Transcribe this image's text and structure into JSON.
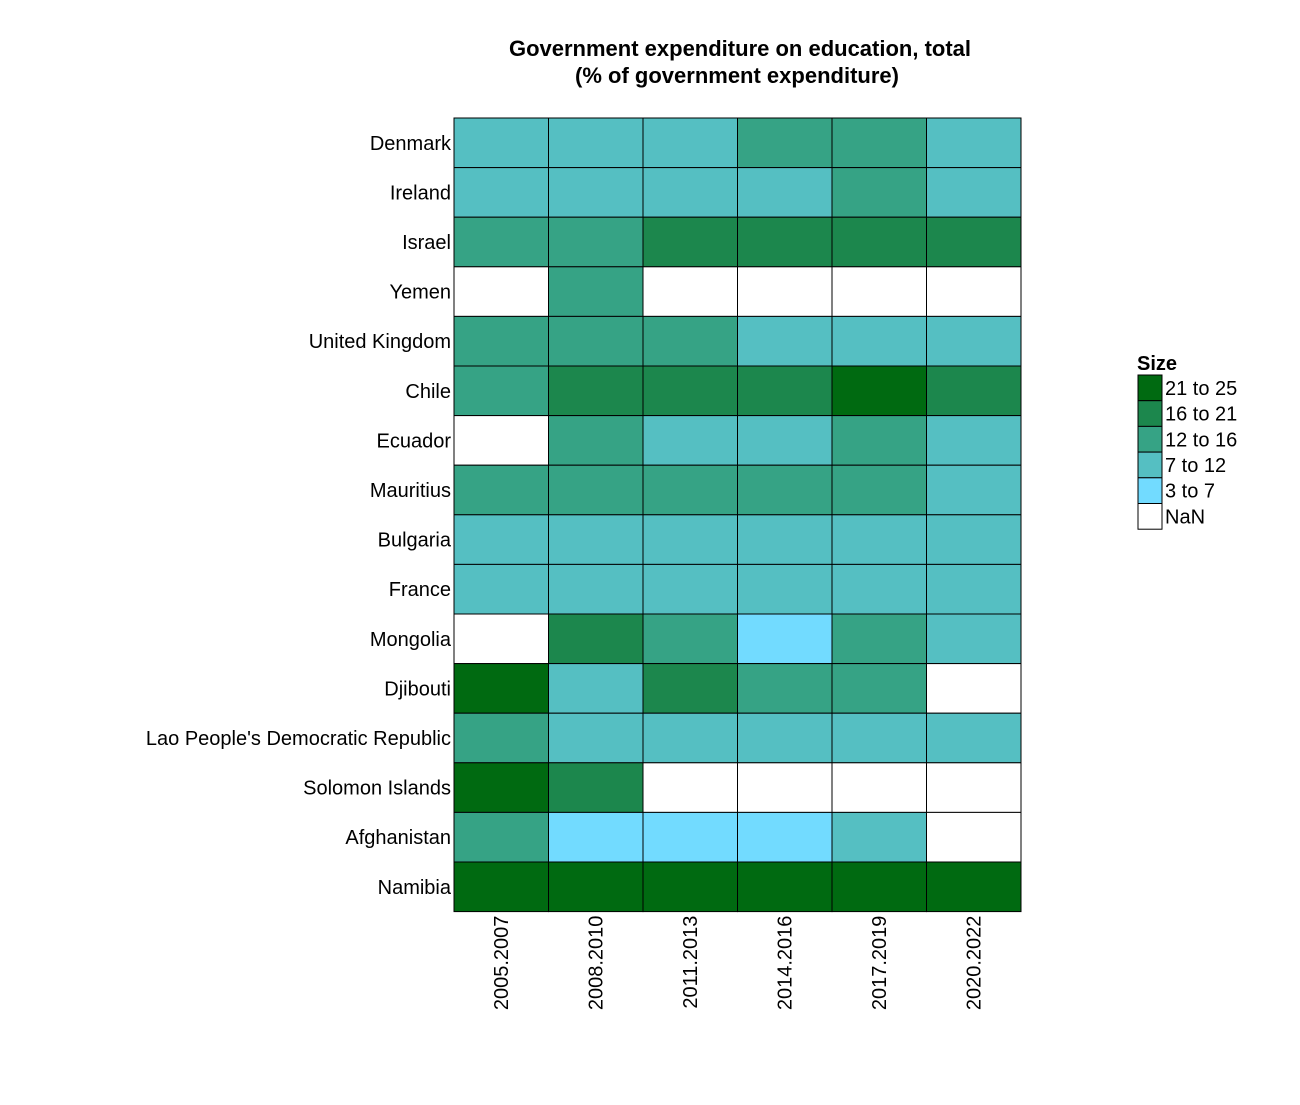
{
  "chart_data": {
    "type": "heatmap",
    "title": "Government expenditure on education, total",
    "subtitle": "(% of government expenditure)",
    "xlabel": "",
    "ylabel": "",
    "columns": [
      "2005.2007",
      "2008.2010",
      "2011.2013",
      "2014.2016",
      "2017.2019",
      "2020.2022"
    ],
    "rows": [
      "Denmark",
      "Ireland",
      "Israel",
      "Yemen",
      "United Kingdom",
      "Chile",
      "Ecuador",
      "Mauritius",
      "Bulgaria",
      "France",
      "Mongolia",
      "Djibouti",
      "Lao People's Democratic Republic",
      "Solomon Islands",
      "Afghanistan",
      "Namibia"
    ],
    "cells": [
      [
        "7 to 12",
        "7 to 12",
        "7 to 12",
        "12 to 16",
        "12 to 16",
        "7 to 12"
      ],
      [
        "7 to 12",
        "7 to 12",
        "7 to 12",
        "7 to 12",
        "12 to 16",
        "7 to 12"
      ],
      [
        "12 to 16",
        "12 to 16",
        "16 to 21",
        "16 to 21",
        "16 to 21",
        "16 to 21"
      ],
      [
        "NaN",
        "12 to 16",
        "NaN",
        "NaN",
        "NaN",
        "NaN"
      ],
      [
        "12 to 16",
        "12 to 16",
        "12 to 16",
        "7 to 12",
        "7 to 12",
        "7 to 12"
      ],
      [
        "12 to 16",
        "16 to 21",
        "16 to 21",
        "16 to 21",
        "21 to 25",
        "16 to 21"
      ],
      [
        "NaN",
        "12 to 16",
        "7 to 12",
        "7 to 12",
        "12 to 16",
        "7 to 12"
      ],
      [
        "12 to 16",
        "12 to 16",
        "12 to 16",
        "12 to 16",
        "12 to 16",
        "7 to 12"
      ],
      [
        "7 to 12",
        "7 to 12",
        "7 to 12",
        "7 to 12",
        "7 to 12",
        "7 to 12"
      ],
      [
        "7 to 12",
        "7 to 12",
        "7 to 12",
        "7 to 12",
        "7 to 12",
        "7 to 12"
      ],
      [
        "NaN",
        "16 to 21",
        "12 to 16",
        "3 to 7",
        "12 to 16",
        "7 to 12"
      ],
      [
        "21 to 25",
        "7 to 12",
        "16 to 21",
        "12 to 16",
        "12 to 16",
        "NaN"
      ],
      [
        "12 to 16",
        "7 to 12",
        "7 to 12",
        "7 to 12",
        "7 to 12",
        "7 to 12"
      ],
      [
        "21 to 25",
        "16 to 21",
        "NaN",
        "NaN",
        "NaN",
        "NaN"
      ],
      [
        "12 to 16",
        "3 to 7",
        "3 to 7",
        "3 to 7",
        "7 to 12",
        "NaN"
      ],
      [
        "21 to 25",
        "21 to 25",
        "21 to 25",
        "21 to 25",
        "21 to 25",
        "21 to 25"
      ]
    ],
    "legend": {
      "title": "Size",
      "placement": "right",
      "items": [
        {
          "label": "21 to 25",
          "color": "#006a11"
        },
        {
          "label": "16 to 21",
          "color": "#1c874d"
        },
        {
          "label": "12 to 16",
          "color": "#36a385"
        },
        {
          "label": "7 to 12",
          "color": "#55bfc2"
        },
        {
          "label": "3 to 7",
          "color": "#72dbff"
        },
        {
          "label": "NaN",
          "color": "#ffffff"
        }
      ]
    }
  }
}
